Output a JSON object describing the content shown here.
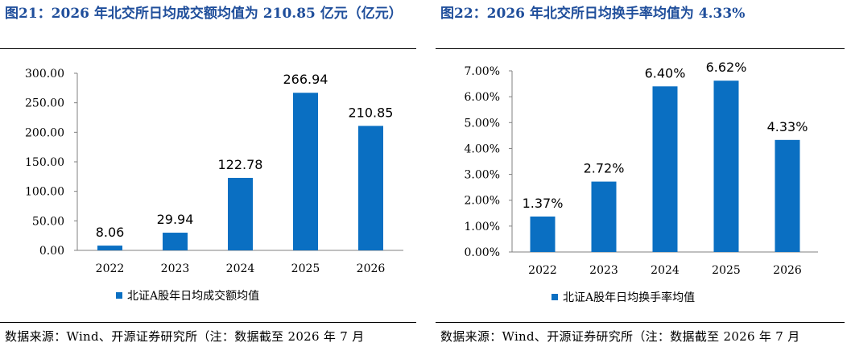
{
  "colors": {
    "bar": "#0a6fc2",
    "title": "#1f4e9b",
    "axis": "#808080"
  },
  "charts": [
    {
      "title": "图21：2026 年北交所日均成交额均值为 210.85 亿元（亿元）",
      "source": "数据来源：Wind、开源证券研究所（注：数据截至 2026 年 7 月",
      "legend": "北证A股年日均成交额均值",
      "y_ticks": [
        "0.00",
        "50.00",
        "100.00",
        "150.00",
        "200.00",
        "250.00",
        "300.00"
      ],
      "data_labels": [
        "8.06",
        "29.94",
        "122.78",
        "266.94",
        "210.85"
      ]
    },
    {
      "title": "图22：2026 年北交所日均换手率均值为 4.33%",
      "source": "数据来源：Wind、开源证券研究所（注：数据截至 2026 年 7 月",
      "legend": "北证A股年日均换手率均值",
      "y_ticks": [
        "0.00%",
        "1.00%",
        "2.00%",
        "3.00%",
        "4.00%",
        "5.00%",
        "6.00%",
        "7.00%"
      ],
      "data_labels": [
        "1.37%",
        "2.72%",
        "6.40%",
        "6.62%",
        "4.33%"
      ]
    }
  ],
  "chart_data": [
    {
      "type": "bar",
      "title": "2026 年北交所日均成交额均值为 210.85 亿元（亿元）",
      "categories": [
        "2022",
        "2023",
        "2024",
        "2025",
        "2026"
      ],
      "series": [
        {
          "name": "北证A股年日均成交额均值",
          "values": [
            8.06,
            29.94,
            122.78,
            266.94,
            210.85
          ]
        }
      ],
      "ylim": [
        0,
        300
      ],
      "grid": false,
      "legend": "bottom"
    },
    {
      "type": "bar",
      "title": "2026 年北交所日均换手率均值为 4.33%",
      "categories": [
        "2022",
        "2023",
        "2024",
        "2025",
        "2026"
      ],
      "series": [
        {
          "name": "北证A股年日均换手率均值",
          "values": [
            1.37,
            2.72,
            6.4,
            6.62,
            4.33
          ]
        }
      ],
      "ylim": [
        0,
        7
      ],
      "grid": false,
      "legend": "bottom"
    }
  ]
}
